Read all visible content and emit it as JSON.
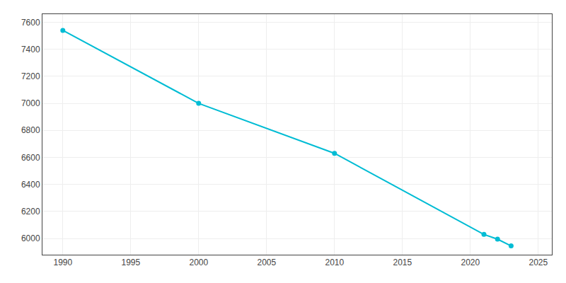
{
  "chart_data": {
    "type": "line",
    "x": [
      1990,
      2000,
      2010,
      2021,
      2022,
      2023
    ],
    "values": [
      7540,
      7000,
      6630,
      6030,
      5995,
      5945
    ],
    "color": "#00BCD4",
    "marker": "circle",
    "line_style": "solid",
    "xlim": [
      1988.5,
      2026
    ],
    "ylim": [
      5880,
      7660
    ],
    "xticks": [
      1990,
      1995,
      2000,
      2005,
      2010,
      2015,
      2020,
      2025
    ],
    "yticks": [
      6000,
      6200,
      6400,
      6600,
      6800,
      7000,
      7200,
      7400,
      7600
    ],
    "grid": true
  }
}
